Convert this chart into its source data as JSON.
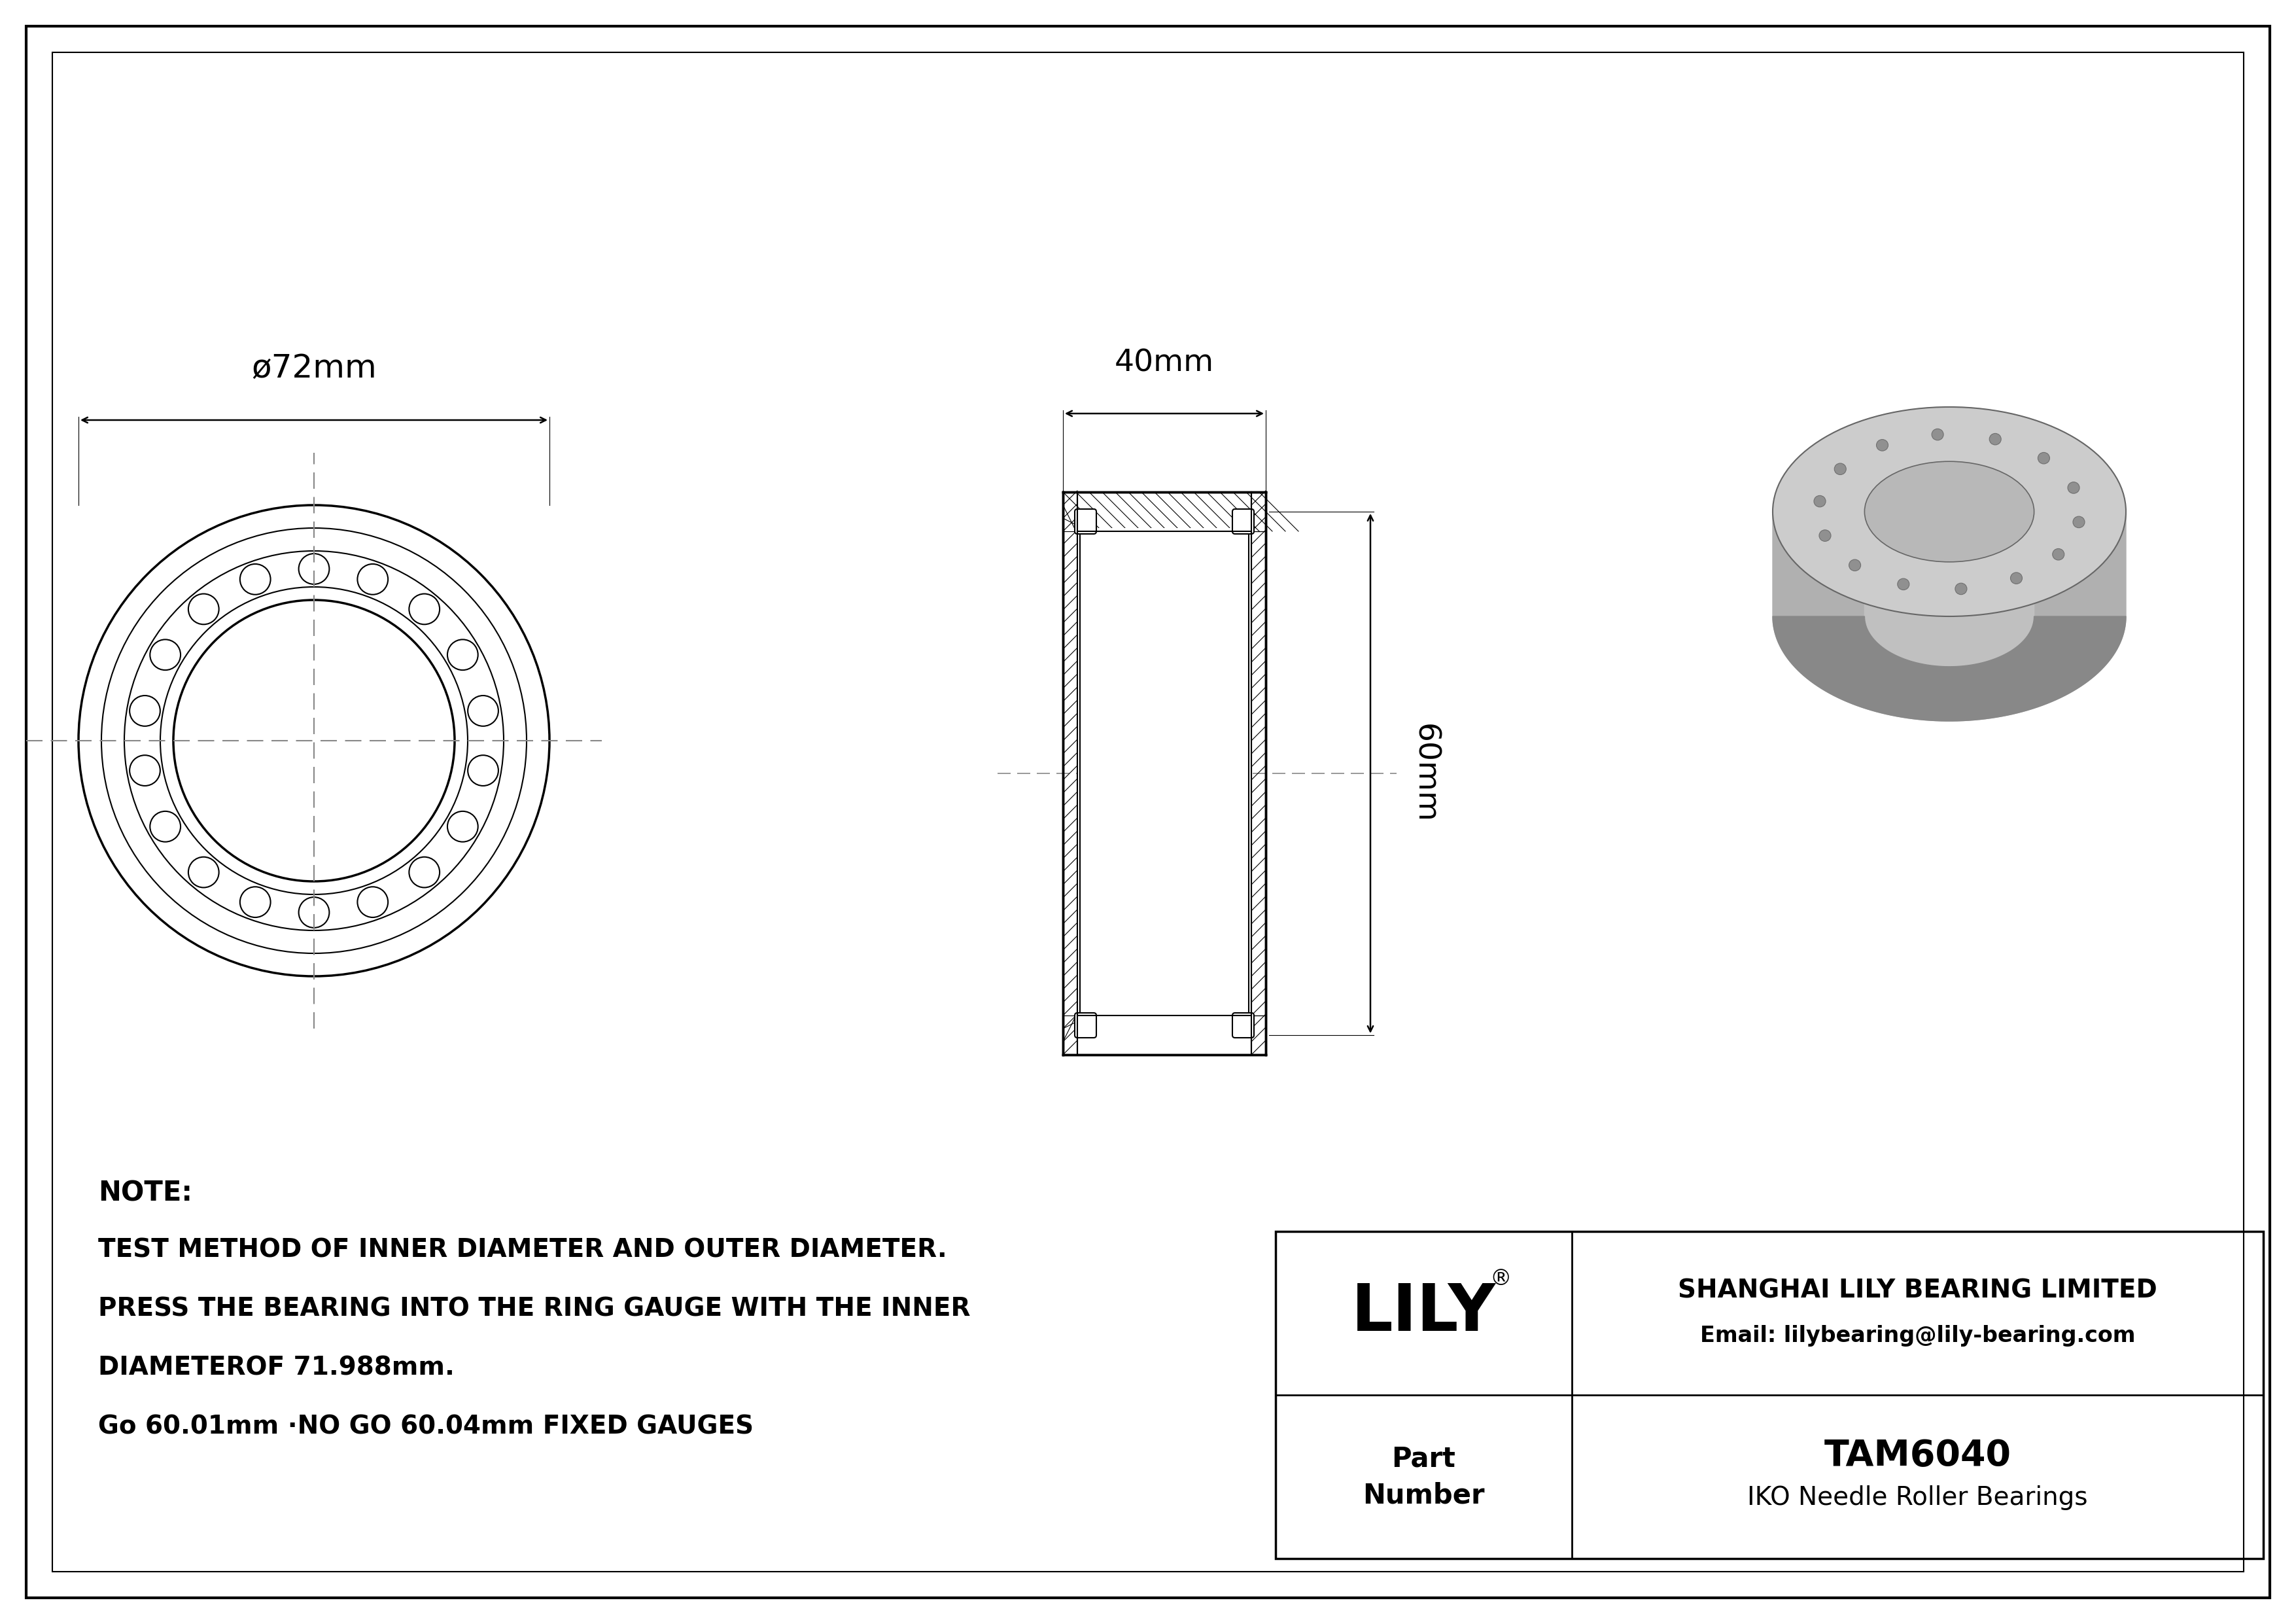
{
  "bg_color": "#ffffff",
  "border_color": "#000000",
  "line_color": "#000000",
  "part_number": "TAM6040",
  "bearing_type": "IKO Needle Roller Bearings",
  "company": "SHANGHAI LILY BEARING LIMITED",
  "email": "Email: lilybearing@lily-bearing.com",
  "logo_text": "LILY",
  "note_line1": "NOTE:",
  "note_line2": "TEST METHOD OF INNER DIAMETER AND OUTER DIAMETER.",
  "note_line3": "PRESS THE BEARING INTO THE RING GAUGE WITH THE INNER",
  "note_line4": "DIAMETEROF 71.988mm.",
  "note_line5": "Go 60.01mm ·NO GO 60.04mm FIXED GAUGES",
  "dim_od": "ø72mm",
  "dim_width": "40mm",
  "dim_height": "60mm",
  "gray3d": "#b0b0b0",
  "gray3d_dark": "#888888",
  "gray3d_light": "#cccccc",
  "gray3d_mid": "#a0a0a0"
}
